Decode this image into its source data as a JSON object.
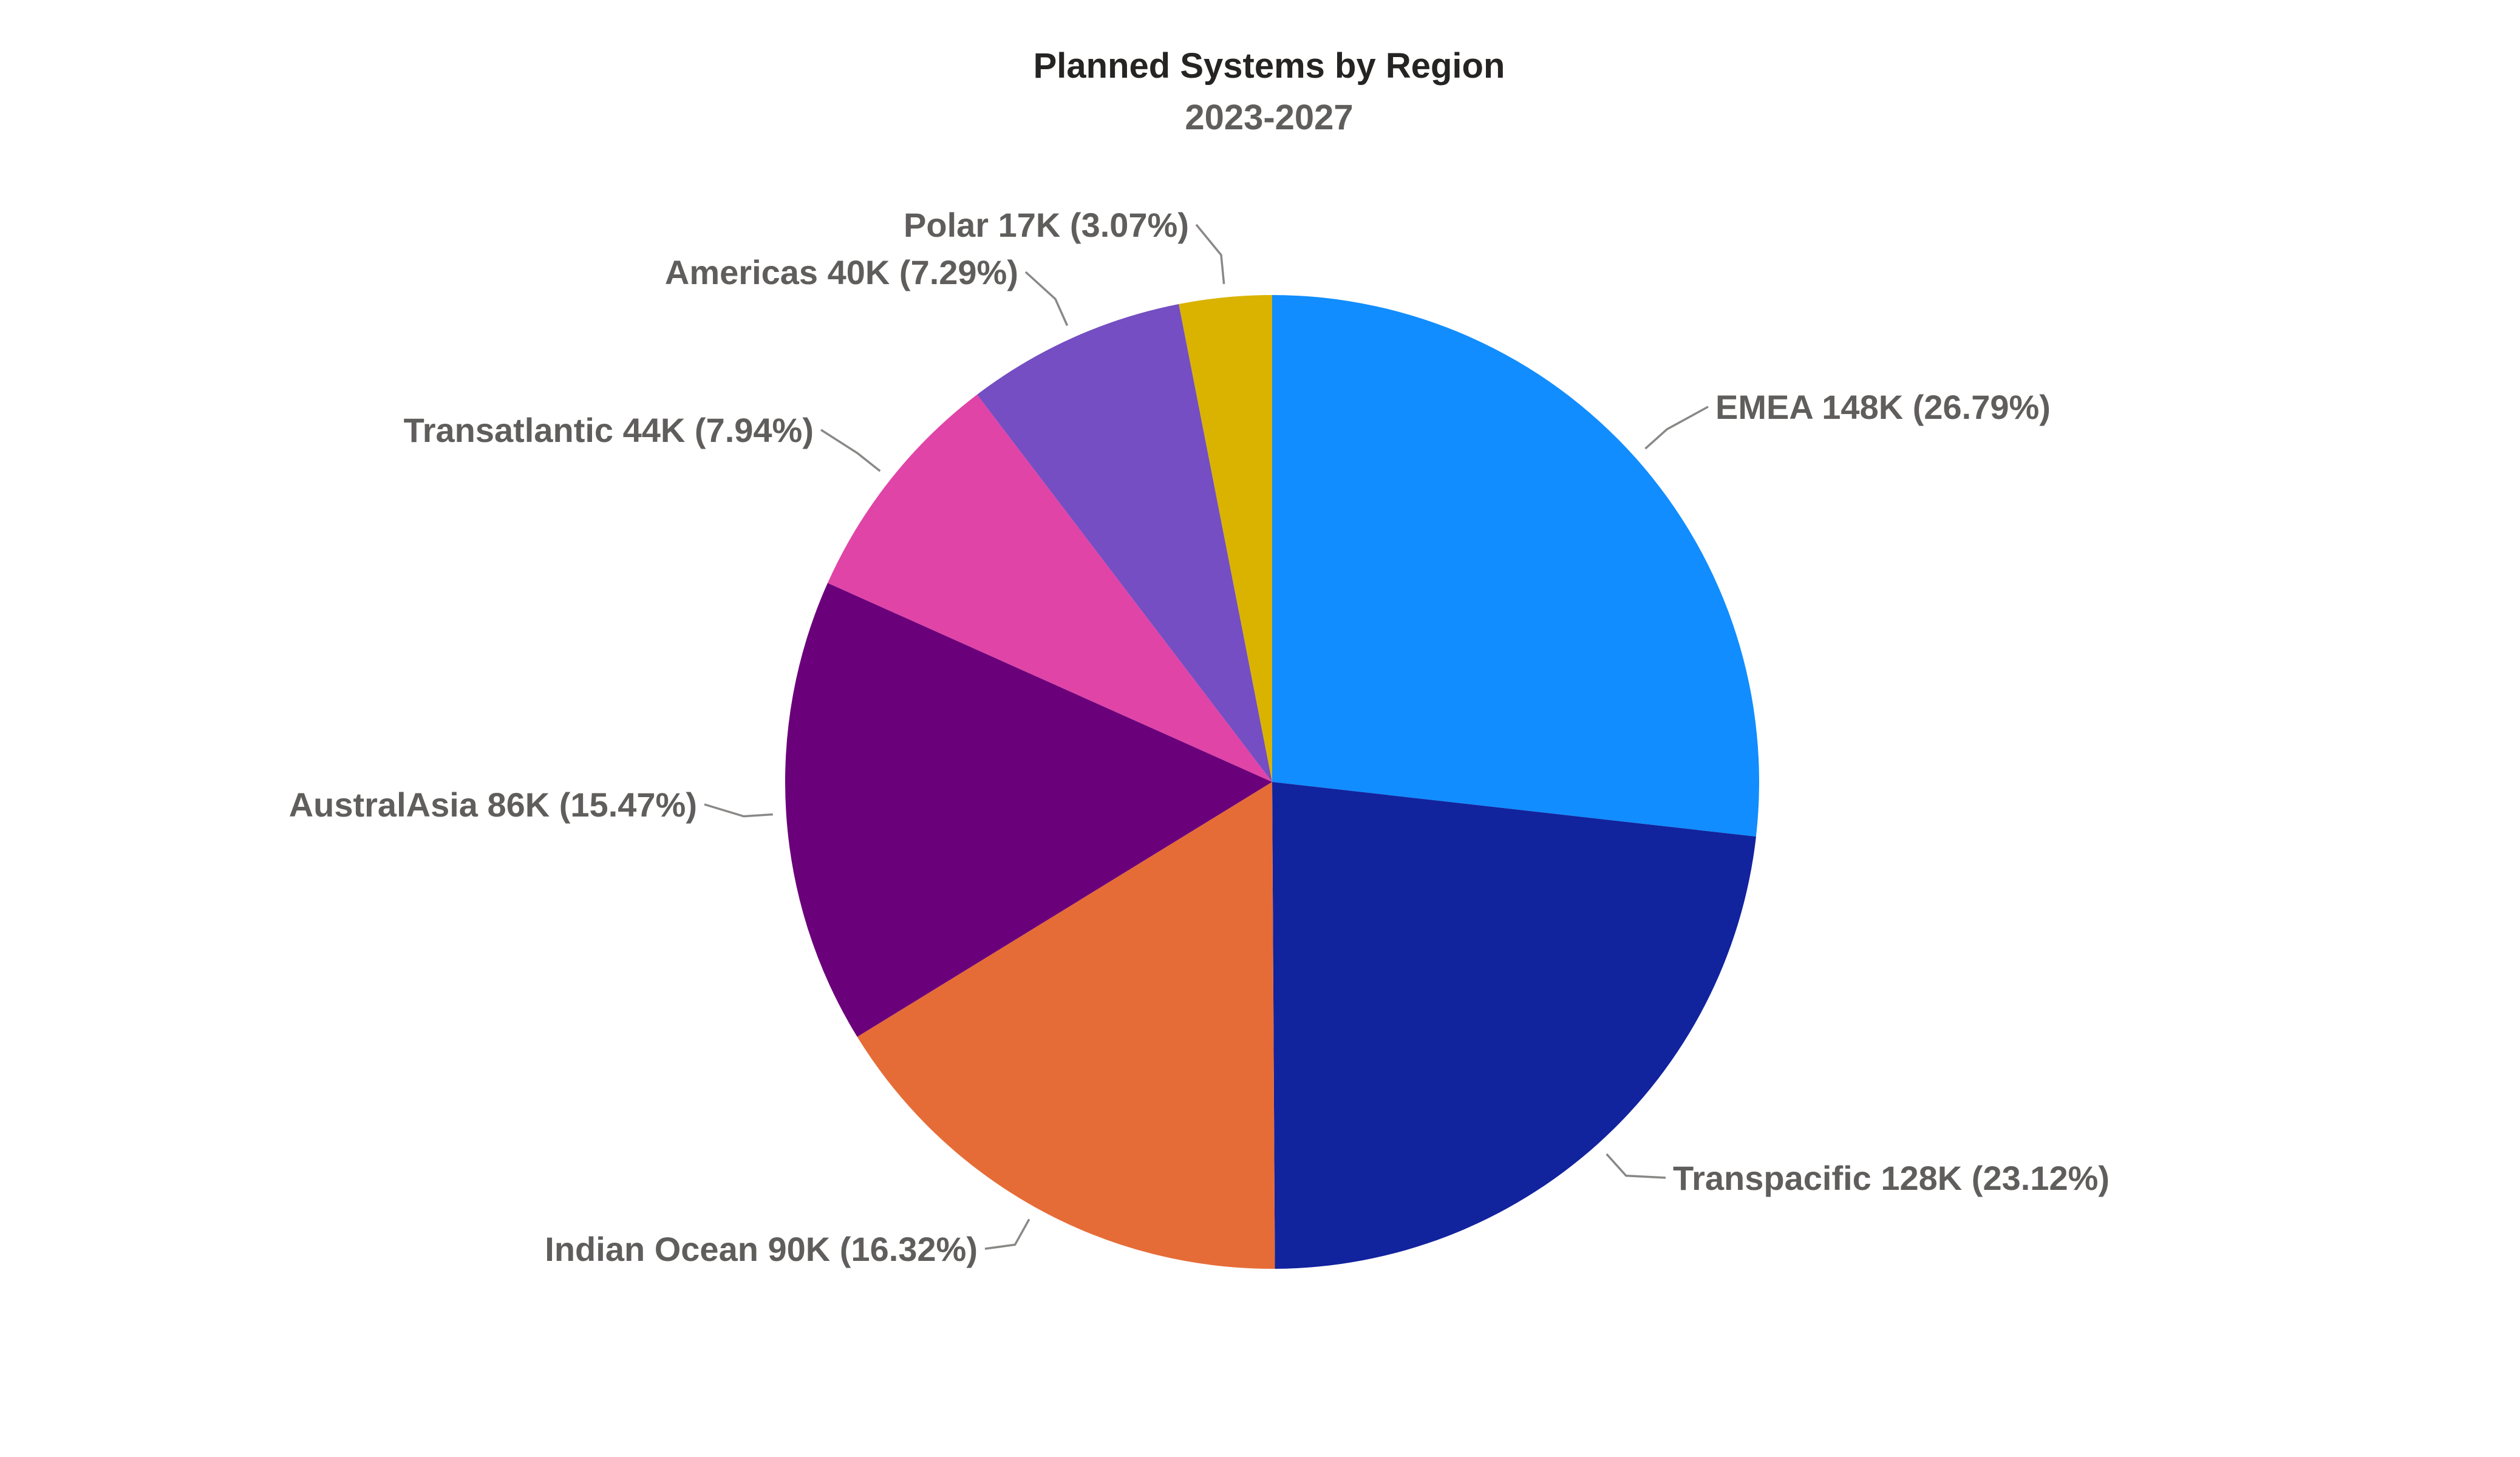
{
  "chart_data": {
    "type": "pie",
    "title": "Planned Systems by Region",
    "subtitle": "2023-2027",
    "start_angle_deg": 0,
    "direction": "clockwise",
    "slices": [
      {
        "label": "EMEA",
        "value_text": "148K",
        "value": 148,
        "percent": 26.79,
        "percent_text": "26.79%",
        "color": "#118dff"
      },
      {
        "label": "Transpacific",
        "value_text": "128K",
        "value": 128,
        "percent": 23.12,
        "percent_text": "23.12%",
        "color": "#12239e"
      },
      {
        "label": "Indian Ocean",
        "value_text": "90K",
        "value": 90,
        "percent": 16.32,
        "percent_text": "16.32%",
        "color": "#e66c37"
      },
      {
        "label": "AustralAsia",
        "value_text": "86K",
        "value": 86,
        "percent": 15.47,
        "percent_text": "15.47%",
        "color": "#6b007b"
      },
      {
        "label": "Transatlantic",
        "value_text": "44K",
        "value": 44,
        "percent": 7.94,
        "percent_text": "7.94%",
        "color": "#e044a7"
      },
      {
        "label": "Americas",
        "value_text": "40K",
        "value": 40,
        "percent": 7.29,
        "percent_text": "7.29%",
        "color": "#744ec2"
      },
      {
        "label": "Polar",
        "value_text": "17K",
        "value": 17,
        "percent": 3.07,
        "percent_text": "3.07%",
        "color": "#d9b300"
      }
    ]
  }
}
